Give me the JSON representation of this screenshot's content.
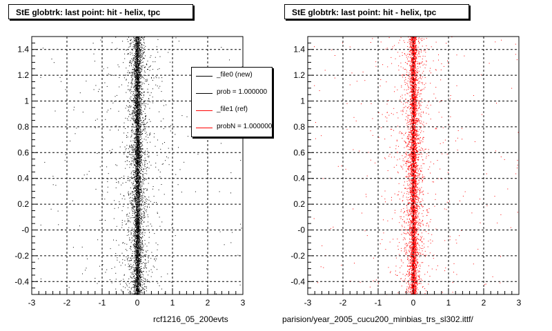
{
  "panels": [
    {
      "title": "StE globtrk: last point: hit - helix, tpc",
      "footer": "rcf1216_05_200evts",
      "color": "#000000"
    },
    {
      "title": "StE globtrk: last point: hit - helix, tpc",
      "footer": "parision/year_2005_cucu200_minbias_trs_sl302.ittf/",
      "color": "#ff0000"
    }
  ],
  "legend": {
    "entries": [
      {
        "label": "_file0 (new)",
        "color": "#000000"
      },
      {
        "label": "prob = 1.000000",
        "color": "#000000"
      },
      {
        "label": "_file1 (ref)",
        "color": "#ff0000"
      },
      {
        "label": "probN = 1.000000",
        "color": "#ff0000"
      }
    ]
  },
  "corner_stamp": "",
  "chart_data": [
    {
      "type": "scatter",
      "title": "StE globtrk: last point: hit - helix, tpc",
      "xlim": [
        -3,
        3
      ],
      "ylim": [
        -0.5,
        1.5
      ],
      "xticks": [
        "-3",
        "-2",
        "-1",
        "0",
        "1",
        "2",
        "3"
      ],
      "yticks": [
        "-0.4",
        "-0.2",
        "-0",
        "0.2",
        "0.4",
        "0.6",
        "0.8",
        "1",
        "1.2",
        "1.4"
      ],
      "grid": true,
      "series": [
        {
          "name": "_file0 (new)",
          "color": "#000000",
          "center_x": 0,
          "core_width": 0.15
        }
      ]
    },
    {
      "type": "scatter",
      "title": "StE globtrk: last point: hit - helix, tpc",
      "xlim": [
        -3,
        3
      ],
      "ylim": [
        -0.5,
        1.5
      ],
      "xticks": [
        "-3",
        "-2",
        "-1",
        "0",
        "1",
        "2",
        "3"
      ],
      "yticks": [
        "-0.4",
        "-0.2",
        "-0",
        "0.2",
        "0.4",
        "0.6",
        "0.8",
        "1",
        "1.2",
        "1.4"
      ],
      "grid": true,
      "series": [
        {
          "name": "_file1 (ref)",
          "color": "#ff0000",
          "center_x": 0,
          "core_width": 0.15
        }
      ]
    }
  ]
}
